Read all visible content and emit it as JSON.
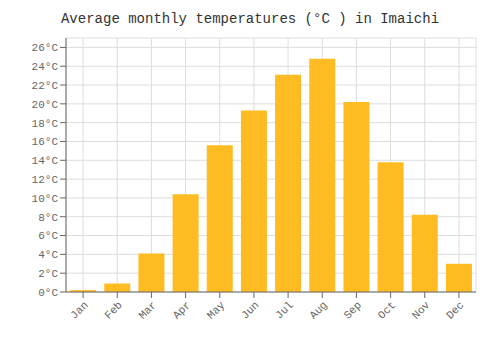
{
  "chart_data": {
    "type": "bar",
    "title": "Average monthly temperatures (°C ) in Imaichi",
    "categories": [
      "Jan",
      "Feb",
      "Mar",
      "Apr",
      "May",
      "Jun",
      "Jul",
      "Aug",
      "Sep",
      "Oct",
      "Nov",
      "Dec"
    ],
    "values": [
      0.2,
      0.9,
      4.1,
      10.4,
      15.6,
      19.3,
      23.1,
      24.8,
      20.2,
      13.8,
      8.2,
      3.0
    ],
    "color": "#FFBB22",
    "ylim": [
      0,
      27
    ],
    "yticks": [
      {
        "value": 0,
        "label": "0°C"
      },
      {
        "value": 2,
        "label": "2°C"
      },
      {
        "value": 4,
        "label": "4°C"
      },
      {
        "value": 6,
        "label": "6°C"
      },
      {
        "value": 8,
        "label": "8°C"
      },
      {
        "value": 10,
        "label": "10°C"
      },
      {
        "value": 12,
        "label": "12°C"
      },
      {
        "value": 14,
        "label": "14°C"
      },
      {
        "value": 16,
        "label": "16°C"
      },
      {
        "value": 18,
        "label": "18°C"
      },
      {
        "value": 20,
        "label": "20°C"
      },
      {
        "value": 22,
        "label": "22°C"
      },
      {
        "value": 24,
        "label": "24°C"
      },
      {
        "value": 26,
        "label": "26°C"
      }
    ],
    "grid": true
  }
}
